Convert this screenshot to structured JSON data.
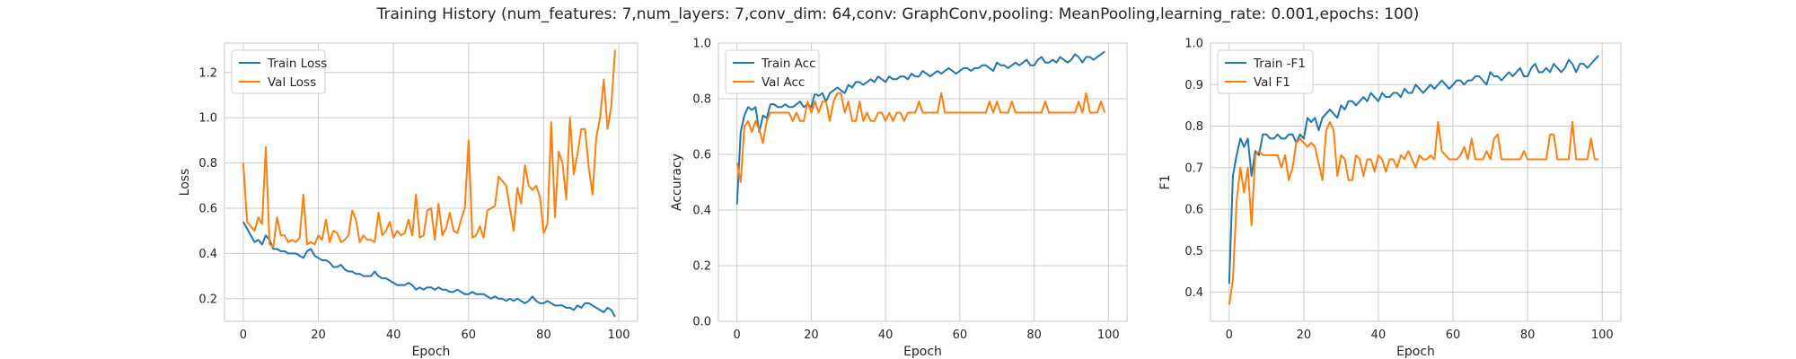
{
  "title": "Training History (num_features: 7,num_layers: 7,conv_dim: 64,conv: GraphConv,pooling: MeanPooling,learning_rate: 0.001,epochs: 100)",
  "colors": {
    "train": "#1f77b4",
    "val": "#ff7f0e"
  },
  "chart_data": [
    {
      "type": "line",
      "title": "",
      "xlabel": "Epoch",
      "ylabel": "Loss",
      "xlim": [
        -5,
        105
      ],
      "ylim": [
        0.1,
        1.33
      ],
      "xticks": [
        0,
        20,
        40,
        60,
        80,
        100
      ],
      "yticks": [
        0.2,
        0.4,
        0.6,
        0.8,
        1.0,
        1.2
      ],
      "grid": true,
      "legend": "top-left",
      "series": [
        {
          "name": "Train Loss",
          "color": "#1f77b4",
          "values": [
            0.54,
            0.51,
            0.48,
            0.45,
            0.46,
            0.44,
            0.48,
            0.46,
            0.42,
            0.42,
            0.41,
            0.41,
            0.4,
            0.4,
            0.4,
            0.39,
            0.38,
            0.41,
            0.42,
            0.39,
            0.38,
            0.37,
            0.37,
            0.36,
            0.34,
            0.34,
            0.35,
            0.33,
            0.32,
            0.32,
            0.31,
            0.31,
            0.3,
            0.3,
            0.3,
            0.32,
            0.3,
            0.29,
            0.29,
            0.28,
            0.27,
            0.26,
            0.26,
            0.26,
            0.27,
            0.26,
            0.24,
            0.25,
            0.24,
            0.25,
            0.25,
            0.24,
            0.25,
            0.24,
            0.24,
            0.23,
            0.23,
            0.24,
            0.23,
            0.22,
            0.22,
            0.23,
            0.22,
            0.22,
            0.22,
            0.21,
            0.2,
            0.21,
            0.2,
            0.2,
            0.19,
            0.2,
            0.19,
            0.2,
            0.19,
            0.18,
            0.19,
            0.21,
            0.19,
            0.18,
            0.18,
            0.19,
            0.18,
            0.17,
            0.17,
            0.17,
            0.16,
            0.16,
            0.15,
            0.17,
            0.16,
            0.18,
            0.18,
            0.17,
            0.16,
            0.15,
            0.14,
            0.16,
            0.15,
            0.12
          ]
        },
        {
          "name": "Val Loss",
          "color": "#ff7f0e",
          "values": [
            0.8,
            0.54,
            0.52,
            0.5,
            0.56,
            0.53,
            0.87,
            0.44,
            0.43,
            0.56,
            0.48,
            0.48,
            0.45,
            0.46,
            0.45,
            0.47,
            0.66,
            0.44,
            0.45,
            0.44,
            0.48,
            0.46,
            0.55,
            0.45,
            0.5,
            0.49,
            0.45,
            0.46,
            0.48,
            0.59,
            0.55,
            0.45,
            0.48,
            0.46,
            0.46,
            0.45,
            0.58,
            0.48,
            0.5,
            0.54,
            0.47,
            0.5,
            0.48,
            0.49,
            0.55,
            0.48,
            0.66,
            0.47,
            0.48,
            0.59,
            0.6,
            0.46,
            0.62,
            0.48,
            0.51,
            0.58,
            0.5,
            0.49,
            0.55,
            0.6,
            0.9,
            0.47,
            0.48,
            0.52,
            0.47,
            0.59,
            0.6,
            0.61,
            0.74,
            0.72,
            0.7,
            0.6,
            0.5,
            0.69,
            0.62,
            0.79,
            0.7,
            0.68,
            0.7,
            0.65,
            0.49,
            0.53,
            0.98,
            0.56,
            0.85,
            0.8,
            0.64,
            1.0,
            0.75,
            0.84,
            0.95,
            0.95,
            0.78,
            0.66,
            0.91,
            1.0,
            1.17,
            0.95,
            1.05,
            1.3
          ]
        }
      ]
    },
    {
      "type": "line",
      "title": "",
      "xlabel": "Epoch",
      "ylabel": "Accuracy",
      "xlim": [
        -5,
        105
      ],
      "ylim": [
        0.0,
        1.0
      ],
      "xticks": [
        0,
        20,
        40,
        60,
        80,
        100
      ],
      "yticks": [
        0.0,
        0.2,
        0.4,
        0.6,
        0.8,
        1.0
      ],
      "grid": true,
      "legend": "top-left",
      "series": [
        {
          "name": "Train Acc",
          "color": "#1f77b4",
          "values": [
            0.42,
            0.68,
            0.74,
            0.77,
            0.76,
            0.77,
            0.68,
            0.74,
            0.73,
            0.78,
            0.78,
            0.77,
            0.77,
            0.78,
            0.77,
            0.77,
            0.78,
            0.79,
            0.77,
            0.78,
            0.77,
            0.82,
            0.81,
            0.82,
            0.79,
            0.82,
            0.83,
            0.84,
            0.83,
            0.82,
            0.85,
            0.84,
            0.86,
            0.86,
            0.85,
            0.86,
            0.87,
            0.86,
            0.88,
            0.87,
            0.86,
            0.88,
            0.87,
            0.87,
            0.88,
            0.88,
            0.87,
            0.89,
            0.88,
            0.88,
            0.9,
            0.89,
            0.88,
            0.89,
            0.9,
            0.89,
            0.9,
            0.91,
            0.9,
            0.89,
            0.9,
            0.91,
            0.91,
            0.9,
            0.91,
            0.91,
            0.92,
            0.92,
            0.91,
            0.9,
            0.93,
            0.92,
            0.92,
            0.91,
            0.92,
            0.93,
            0.92,
            0.93,
            0.94,
            0.92,
            0.92,
            0.94,
            0.95,
            0.93,
            0.93,
            0.94,
            0.93,
            0.95,
            0.94,
            0.93,
            0.94,
            0.96,
            0.95,
            0.93,
            0.95,
            0.95,
            0.94,
            0.95,
            0.96,
            0.97
          ]
        },
        {
          "name": "Val Acc",
          "color": "#ff7f0e",
          "values": [
            0.57,
            0.5,
            0.7,
            0.72,
            0.68,
            0.72,
            0.69,
            0.64,
            0.72,
            0.75,
            0.75,
            0.75,
            0.75,
            0.75,
            0.75,
            0.72,
            0.75,
            0.72,
            0.72,
            0.79,
            0.75,
            0.79,
            0.75,
            0.79,
            0.79,
            0.72,
            0.79,
            0.82,
            0.82,
            0.75,
            0.79,
            0.72,
            0.72,
            0.79,
            0.72,
            0.75,
            0.72,
            0.72,
            0.75,
            0.75,
            0.72,
            0.75,
            0.72,
            0.75,
            0.75,
            0.72,
            0.75,
            0.75,
            0.75,
            0.79,
            0.75,
            0.75,
            0.75,
            0.75,
            0.75,
            0.82,
            0.75,
            0.75,
            0.75,
            0.75,
            0.75,
            0.75,
            0.75,
            0.75,
            0.75,
            0.75,
            0.75,
            0.75,
            0.79,
            0.75,
            0.79,
            0.75,
            0.75,
            0.75,
            0.79,
            0.75,
            0.75,
            0.75,
            0.75,
            0.75,
            0.75,
            0.75,
            0.75,
            0.79,
            0.75,
            0.75,
            0.75,
            0.75,
            0.75,
            0.75,
            0.75,
            0.75,
            0.79,
            0.75,
            0.82,
            0.75,
            0.75,
            0.75,
            0.79,
            0.75
          ]
        }
      ]
    },
    {
      "type": "line",
      "title": "",
      "xlabel": "Epoch",
      "ylabel": "F1",
      "xlim": [
        -5,
        105
      ],
      "ylim": [
        0.33,
        1.0
      ],
      "xticks": [
        0,
        20,
        40,
        60,
        80,
        100
      ],
      "yticks": [
        0.4,
        0.5,
        0.6,
        0.7,
        0.8,
        0.9,
        1.0
      ],
      "grid": true,
      "legend": "top-left",
      "series": [
        {
          "name": "Train -F1",
          "color": "#1f77b4",
          "values": [
            0.42,
            0.68,
            0.73,
            0.77,
            0.75,
            0.77,
            0.68,
            0.74,
            0.73,
            0.78,
            0.78,
            0.77,
            0.77,
            0.78,
            0.77,
            0.77,
            0.78,
            0.78,
            0.76,
            0.78,
            0.77,
            0.82,
            0.81,
            0.82,
            0.79,
            0.82,
            0.83,
            0.84,
            0.83,
            0.82,
            0.85,
            0.84,
            0.86,
            0.86,
            0.85,
            0.86,
            0.87,
            0.86,
            0.88,
            0.87,
            0.86,
            0.88,
            0.87,
            0.87,
            0.88,
            0.88,
            0.87,
            0.89,
            0.88,
            0.88,
            0.9,
            0.89,
            0.88,
            0.89,
            0.9,
            0.89,
            0.9,
            0.91,
            0.9,
            0.89,
            0.9,
            0.91,
            0.91,
            0.9,
            0.91,
            0.91,
            0.92,
            0.92,
            0.91,
            0.9,
            0.93,
            0.92,
            0.92,
            0.91,
            0.92,
            0.93,
            0.92,
            0.93,
            0.94,
            0.92,
            0.92,
            0.94,
            0.95,
            0.93,
            0.93,
            0.94,
            0.93,
            0.95,
            0.94,
            0.93,
            0.94,
            0.96,
            0.95,
            0.93,
            0.95,
            0.95,
            0.94,
            0.95,
            0.96,
            0.97
          ]
        },
        {
          "name": "Val F1",
          "color": "#ff7f0e",
          "values": [
            0.37,
            0.43,
            0.62,
            0.7,
            0.64,
            0.7,
            0.56,
            0.73,
            0.74,
            0.73,
            0.73,
            0.73,
            0.73,
            0.73,
            0.7,
            0.73,
            0.67,
            0.7,
            0.76,
            0.77,
            0.76,
            0.75,
            0.76,
            0.75,
            0.71,
            0.67,
            0.79,
            0.81,
            0.79,
            0.68,
            0.73,
            0.72,
            0.67,
            0.67,
            0.73,
            0.72,
            0.68,
            0.72,
            0.72,
            0.69,
            0.73,
            0.72,
            0.69,
            0.72,
            0.72,
            0.7,
            0.73,
            0.72,
            0.74,
            0.72,
            0.7,
            0.73,
            0.72,
            0.72,
            0.73,
            0.72,
            0.81,
            0.74,
            0.73,
            0.72,
            0.72,
            0.72,
            0.73,
            0.75,
            0.72,
            0.77,
            0.72,
            0.72,
            0.72,
            0.74,
            0.72,
            0.77,
            0.78,
            0.72,
            0.72,
            0.72,
            0.72,
            0.72,
            0.72,
            0.74,
            0.72,
            0.72,
            0.72,
            0.72,
            0.72,
            0.72,
            0.78,
            0.78,
            0.72,
            0.72,
            0.72,
            0.72,
            0.81,
            0.72,
            0.72,
            0.72,
            0.72,
            0.77,
            0.72,
            0.72
          ]
        }
      ]
    }
  ]
}
